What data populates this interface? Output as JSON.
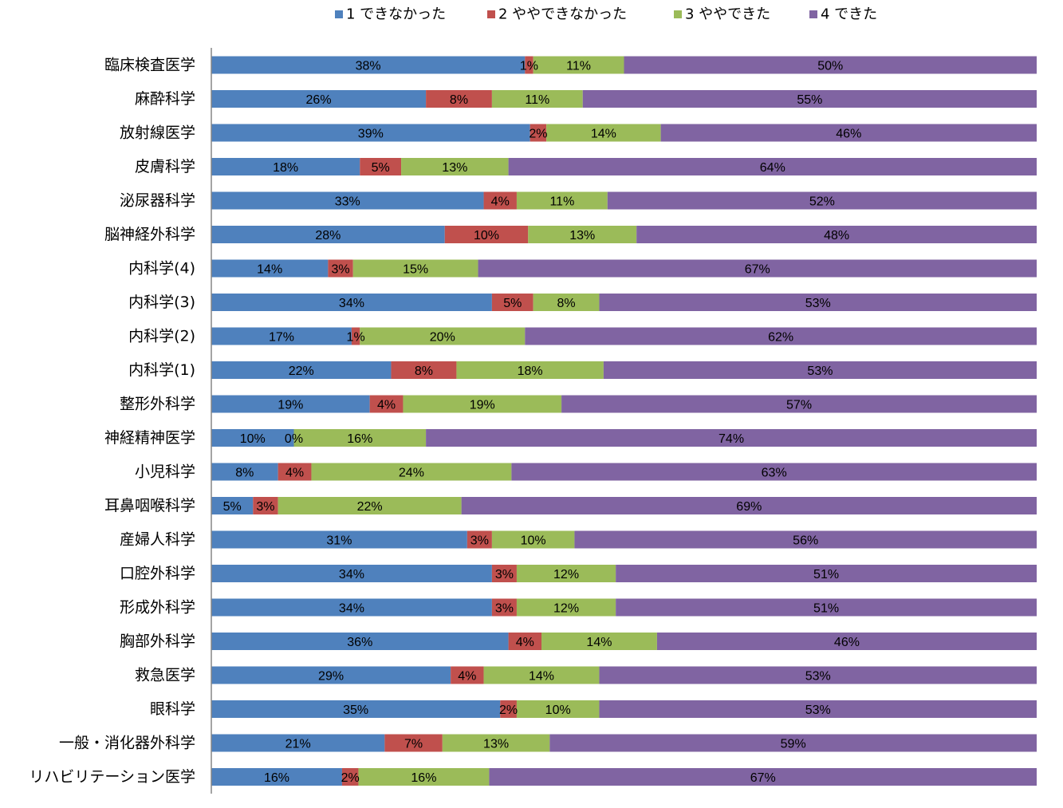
{
  "chart_data": {
    "type": "bar",
    "orientation": "horizontal",
    "stacked": "percent",
    "xlim": [
      0,
      100
    ],
    "grid": false,
    "legend": "top",
    "value_suffix": "%",
    "categories": [
      "臨床検査医学",
      "麻酔科学",
      "放射線医学",
      "皮膚科学",
      "泌尿器科学",
      "脳神経外科学",
      "内科学(4)",
      "内科学(3)",
      "内科学(2)",
      "内科学(1)",
      "整形外科学",
      "神経精神医学",
      "小児科学",
      "耳鼻咽喉科学",
      "産婦人科学",
      "口腔外科学",
      "形成外科学",
      "胸部外科学",
      "救急医学",
      "眼科学",
      "一般・消化器外科学",
      "リハビリテーション医学"
    ],
    "series": [
      {
        "name": "1 できなかった",
        "color": "#4F81BD",
        "values": [
          38,
          26,
          39,
          18,
          33,
          28,
          14,
          34,
          17,
          22,
          19,
          10,
          8,
          5,
          31,
          34,
          34,
          36,
          29,
          35,
          21,
          16
        ]
      },
      {
        "name": "2 ややできなかった",
        "color": "#C0504D",
        "values": [
          1,
          8,
          2,
          5,
          4,
          10,
          3,
          5,
          1,
          8,
          4,
          0,
          4,
          3,
          3,
          3,
          3,
          4,
          4,
          2,
          7,
          2
        ]
      },
      {
        "name": "3 ややできた",
        "color": "#9BBB59",
        "values": [
          11,
          11,
          14,
          13,
          11,
          13,
          15,
          8,
          20,
          18,
          19,
          16,
          24,
          22,
          10,
          12,
          12,
          14,
          14,
          10,
          13,
          16
        ]
      },
      {
        "name": "4 できた",
        "color": "#8064A2",
        "values": [
          50,
          55,
          46,
          64,
          52,
          48,
          67,
          53,
          62,
          53,
          57,
          74,
          63,
          69,
          56,
          51,
          51,
          46,
          53,
          53,
          59,
          67
        ]
      }
    ]
  }
}
